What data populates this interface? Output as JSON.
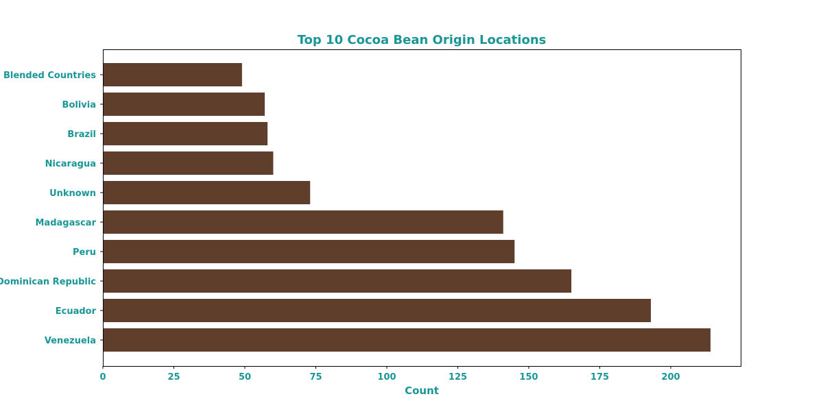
{
  "chart_data": {
    "type": "bar",
    "orientation": "horizontal",
    "title": "Top 10 Cocoa Bean Origin Locations",
    "xlabel": "Count",
    "ylabel": "",
    "xlim": [
      0,
      225
    ],
    "x_ticks": [
      0,
      25,
      50,
      75,
      100,
      125,
      150,
      175,
      200
    ],
    "grid": false,
    "legend": "none",
    "categories": [
      "Venezuela",
      "Ecuador",
      "Dominican Republic",
      "Peru",
      "Madagascar",
      "Unknown",
      "Nicaragua",
      "Brazil",
      "Bolivia",
      "Blended Countries"
    ],
    "values": [
      214,
      193,
      165,
      145,
      141,
      73,
      60,
      58,
      57,
      49
    ],
    "colors": {
      "bar": "#5f3e2c",
      "text": "#1a9696",
      "axis": "#000000"
    }
  }
}
